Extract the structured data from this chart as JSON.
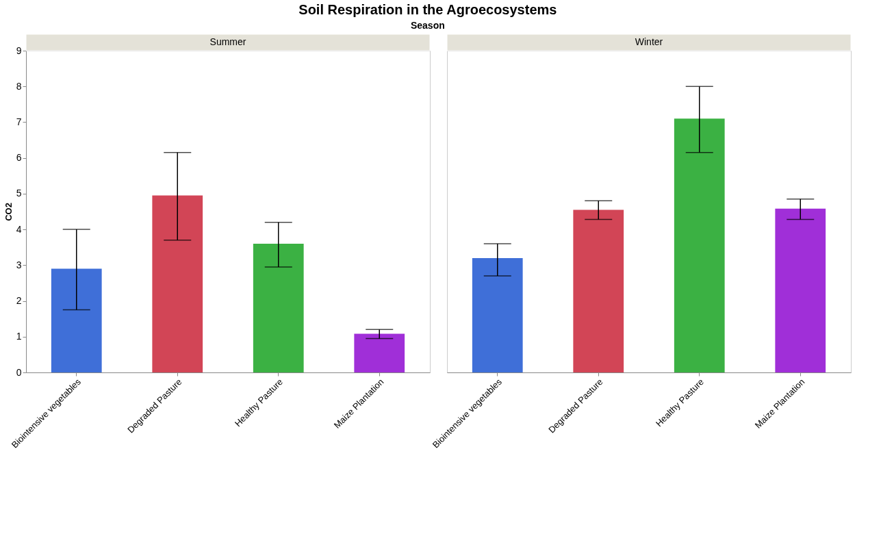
{
  "chart_data": [
    {
      "type": "bar",
      "title": "Soil Respiration in the Agroecosystems",
      "subtitle": "Season",
      "annotations": [
        "Summer"
      ],
      "ylabel": "CO2",
      "categories": [
        "Biointensive vegetables",
        "Degraded Pasture",
        "Healthy Pasture",
        "Maize Plantation"
      ],
      "values": [
        2.9,
        4.95,
        3.6,
        1.08
      ],
      "errors": [
        [
          1.75,
          4.0
        ],
        [
          3.7,
          6.15
        ],
        [
          2.95,
          4.2
        ],
        [
          0.95,
          1.2
        ]
      ],
      "colors": [
        "#3f6fd8",
        "#d24556",
        "#3bb143",
        "#a02fd8"
      ],
      "ylim": [
        0,
        9
      ],
      "yticks": [
        0,
        1,
        2,
        3,
        4,
        5,
        6,
        7,
        8,
        9
      ],
      "grid": false
    },
    {
      "type": "bar",
      "annotations": [
        "Winter"
      ],
      "categories": [
        "Biointensive vegetables",
        "Degraded Pasture",
        "Healthy Pasture",
        "Maize Plantation"
      ],
      "values": [
        3.2,
        4.55,
        7.1,
        4.58
      ],
      "errors": [
        [
          2.7,
          3.6
        ],
        [
          4.28,
          4.8
        ],
        [
          6.15,
          8.0
        ],
        [
          4.28,
          4.85
        ]
      ],
      "colors": [
        "#3f6fd8",
        "#d24556",
        "#3bb143",
        "#a02fd8"
      ],
      "ylim": [
        0,
        9
      ],
      "grid": false,
      "tick_labels": "x"
    }
  ]
}
